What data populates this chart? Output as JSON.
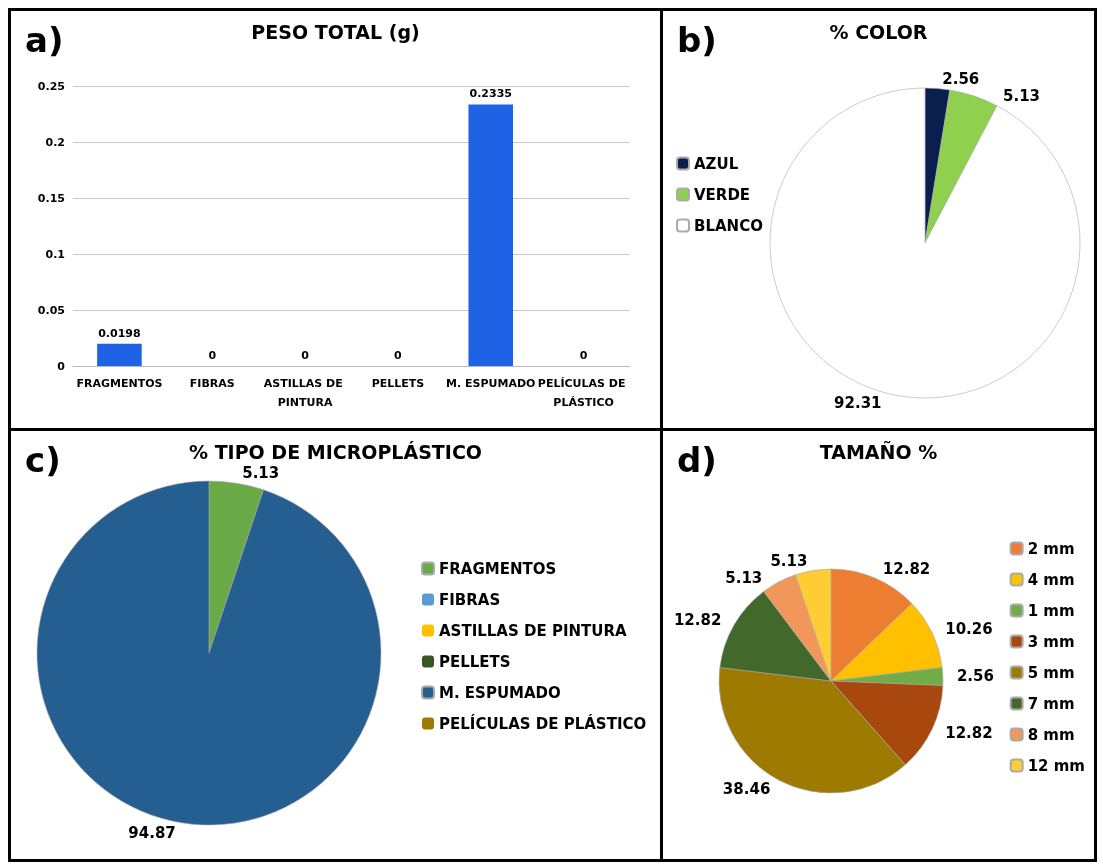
{
  "chart_data": [
    {
      "type": "bar",
      "title": "PESO TOTAL (g)",
      "annotations": [
        "a)"
      ],
      "categories": [
        "FRAGMENTOS",
        "FIBRAS",
        "ASTILLAS DE PINTURA",
        "PELLETS",
        "M. ESPUMADO",
        "PELÍCULAS DE PLÁSTICO"
      ],
      "values": [
        0.0198,
        0,
        0,
        0,
        0.2335,
        0
      ],
      "color": "#1f62e6",
      "ylim": [
        0,
        0.25
      ],
      "yticks": [
        0,
        0.05,
        0.1,
        0.15,
        0.2,
        0.25
      ],
      "grid": "y",
      "data_labels": true,
      "legend": false
    },
    {
      "type": "pie",
      "title": "% COLOR",
      "annotations": [
        "b)"
      ],
      "categories": [
        "AZUL",
        "VERDE",
        "BLANCO"
      ],
      "values": [
        2.56,
        5.13,
        92.31
      ],
      "colors": [
        "#0b1f4f",
        "#8fd14f",
        "#ffffff"
      ],
      "data_labels": true,
      "legend": "left"
    },
    {
      "type": "pie",
      "title": "% TIPO DE MICROPLÁSTICO",
      "annotations": [
        "c)"
      ],
      "categories": [
        "FRAGMENTOS",
        "FIBRAS",
        "ASTILLAS DE PINTURA",
        "PELLETS",
        "M. ESPUMADO",
        "PELÍCULAS DE PLÁSTICO"
      ],
      "values": [
        5.13,
        0,
        0,
        0,
        94.87,
        0
      ],
      "value_labels": [
        "5.13",
        null,
        null,
        null,
        "94.87",
        null
      ],
      "colors": [
        "#6aaa46",
        "#5b9bd5",
        "#ffc000",
        "#375623",
        "#255e91",
        "#9e7a00"
      ],
      "legend": "right"
    },
    {
      "type": "pie",
      "title": "TAMAÑO %",
      "annotations": [
        "d)"
      ],
      "categories": [
        "2 mm",
        "4 mm",
        "1 mm",
        "3 mm",
        "5 mm",
        "7 mm",
        "8 mm",
        "12 mm"
      ],
      "values": [
        12.82,
        10.26,
        2.56,
        12.82,
        38.46,
        12.82,
        5.13,
        5.13
      ],
      "colors": [
        "#ed7d31",
        "#ffc000",
        "#70ad47",
        "#a8480e",
        "#9e7a00",
        "#43682b",
        "#f1975a",
        "#ffcd33"
      ],
      "data_labels": true,
      "legend": "right"
    }
  ]
}
